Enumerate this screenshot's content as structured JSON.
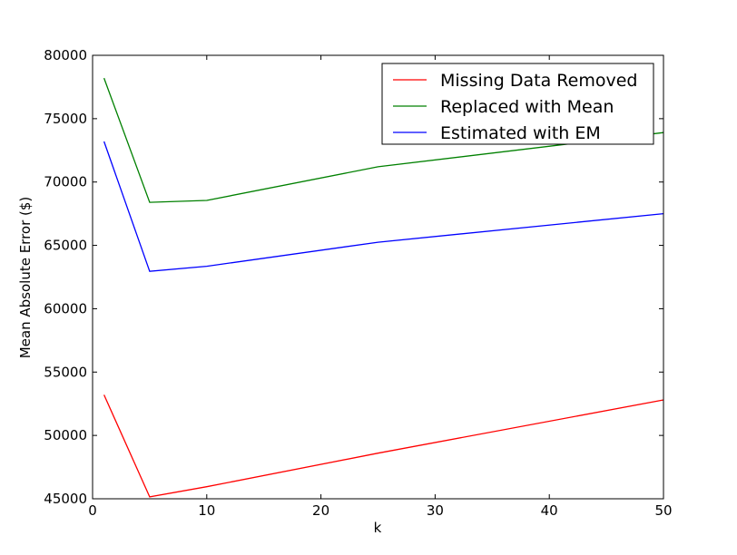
{
  "chart_data": {
    "type": "line",
    "title": "",
    "xlabel": "k",
    "ylabel": "Mean Absolute Error ($)",
    "xlim": [
      0,
      50
    ],
    "ylim": [
      45000,
      80000
    ],
    "xticks": [
      0,
      10,
      20,
      30,
      40,
      50
    ],
    "xtick_labels": [
      "0",
      "10",
      "20",
      "30",
      "40",
      "50"
    ],
    "yticks": [
      45000,
      50000,
      55000,
      60000,
      65000,
      70000,
      75000,
      80000
    ],
    "ytick_labels": [
      "45000",
      "50000",
      "55000",
      "60000",
      "65000",
      "70000",
      "75000",
      "80000"
    ],
    "grid": false,
    "legend_position": "top-right",
    "x": [
      1,
      5,
      10,
      25,
      50
    ],
    "series": [
      {
        "name": "Missing Data Removed",
        "color": "#ff0000",
        "values": [
          53200,
          45150,
          45950,
          48600,
          52800
        ]
      },
      {
        "name": "Replaced with Mean",
        "color": "#008000",
        "values": [
          78200,
          68400,
          68550,
          71200,
          73900
        ]
      },
      {
        "name": "Estimated with EM",
        "color": "#0000ff",
        "values": [
          73200,
          62950,
          63350,
          65250,
          67500
        ]
      }
    ]
  }
}
